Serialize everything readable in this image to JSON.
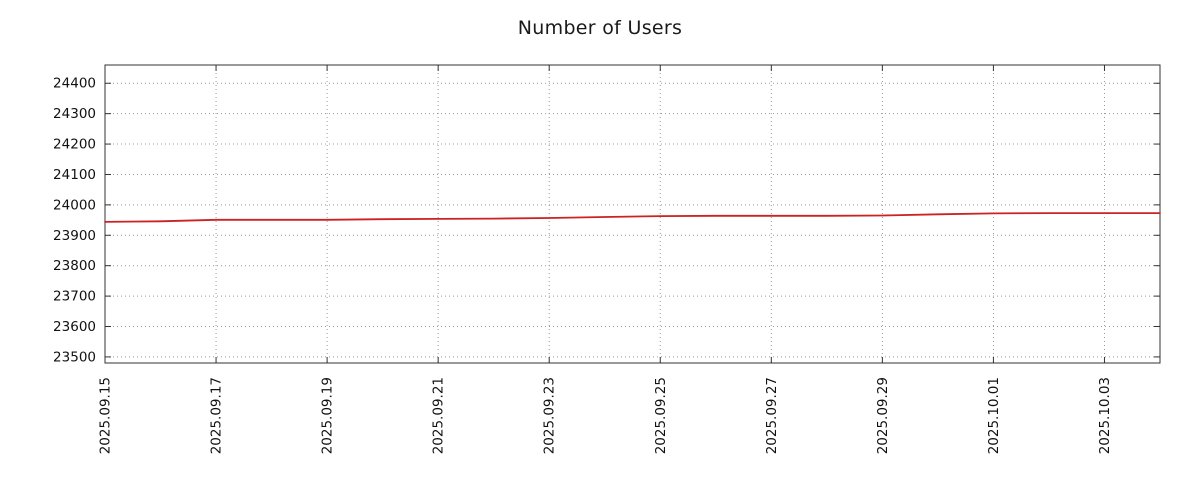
{
  "chart_data": {
    "type": "line",
    "title": "Number of Users",
    "x": [
      "2025.09.15",
      "2025.09.16",
      "2025.09.17",
      "2025.09.18",
      "2025.09.19",
      "2025.09.20",
      "2025.09.21",
      "2025.09.22",
      "2025.09.23",
      "2025.09.24",
      "2025.09.25",
      "2025.09.26",
      "2025.09.27",
      "2025.09.28",
      "2025.09.29",
      "2025.09.30",
      "2025.10.01",
      "2025.10.02",
      "2025.10.03",
      "2025.10.04"
    ],
    "series": [
      {
        "name": "Number of Users",
        "color": "#cc2222",
        "values": [
          23944,
          23946,
          23951,
          23951,
          23951,
          23953,
          23954,
          23955,
          23957,
          23960,
          23963,
          23964,
          23964,
          23964,
          23965,
          23969,
          23972,
          23973,
          23973,
          23973
        ]
      }
    ],
    "x_tick_labels": [
      "2025.09.15",
      "2025.09.17",
      "2025.09.19",
      "2025.09.21",
      "2025.09.23",
      "2025.09.25",
      "2025.09.27",
      "2025.09.29",
      "2025.10.01",
      "2025.10.03"
    ],
    "y_ticks": [
      23500,
      23600,
      23700,
      23800,
      23900,
      24000,
      24100,
      24200,
      24300,
      24400
    ],
    "ylim": [
      23480,
      24460
    ],
    "grid": true,
    "grid_color": "#999999",
    "axis_color": "#333333",
    "tick_label_color": "#111111",
    "background": "#ffffff"
  }
}
